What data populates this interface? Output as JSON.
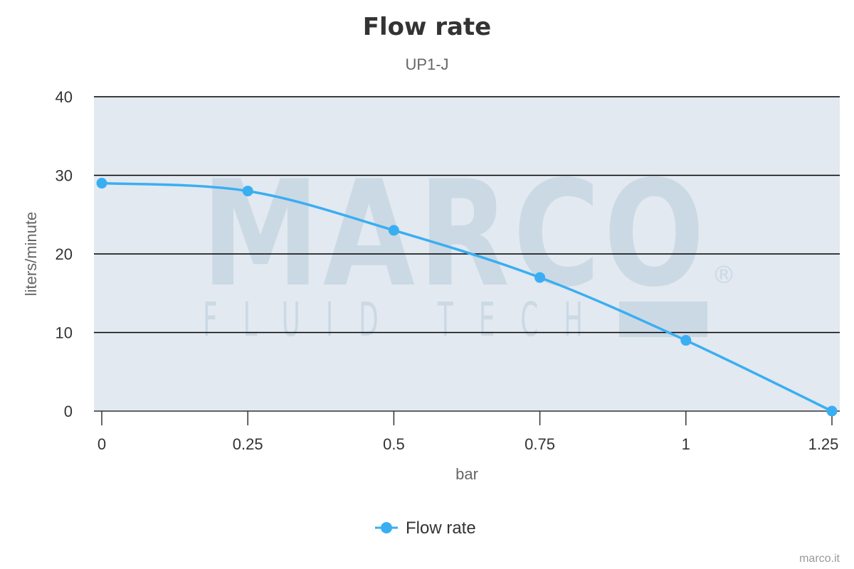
{
  "chart_data": {
    "type": "line",
    "title": "Flow rate",
    "subtitle": "UP1-J",
    "xlabel": "bar",
    "ylabel": "liters/minute",
    "x": [
      0,
      0.25,
      0.5,
      0.75,
      1,
      1.25
    ],
    "x_tick_labels": [
      "0",
      "0.25",
      "0.5",
      "0.75",
      "1",
      "1.25"
    ],
    "y_ticks": [
      0,
      10,
      20,
      30,
      40
    ],
    "y_tick_labels": [
      "0",
      "10",
      "20",
      "30",
      "40"
    ],
    "xlim": [
      0,
      1.25
    ],
    "ylim": [
      0,
      40
    ],
    "grid": true,
    "legend_position": "bottom-center",
    "series": [
      {
        "name": "Flow rate",
        "values": [
          29,
          28,
          23,
          17,
          9,
          0
        ],
        "color": "#3aaef2"
      }
    ]
  },
  "watermark": {
    "brand": "MARCO",
    "tagline": "FLUID TECH",
    "mark": "®"
  },
  "credits": "marco.it",
  "colors": {
    "plot_background": "#e2e9f0",
    "series": "#3aaef2",
    "gridline": "#000000"
  }
}
